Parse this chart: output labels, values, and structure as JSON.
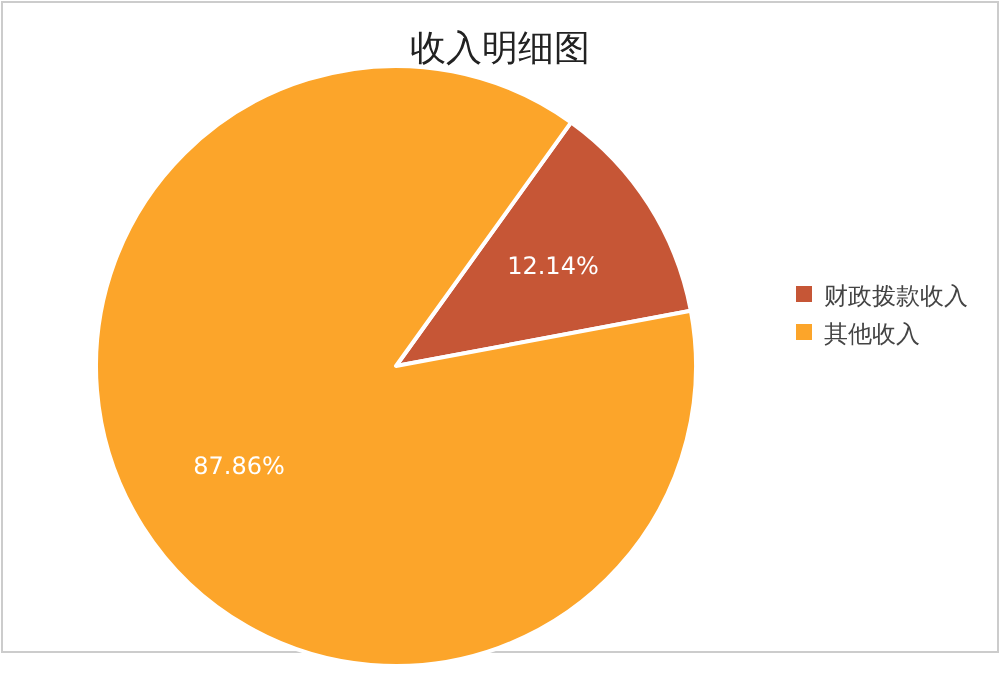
{
  "chart_data": {
    "type": "pie",
    "title": "收入明细图",
    "categories": [
      "财政拨款收入",
      "其他收入"
    ],
    "values": [
      12.14,
      87.86
    ],
    "colors": [
      "#c65636",
      "#fca52a"
    ],
    "value_labels": [
      "12.14%",
      "87.86%"
    ],
    "legend": "right"
  }
}
